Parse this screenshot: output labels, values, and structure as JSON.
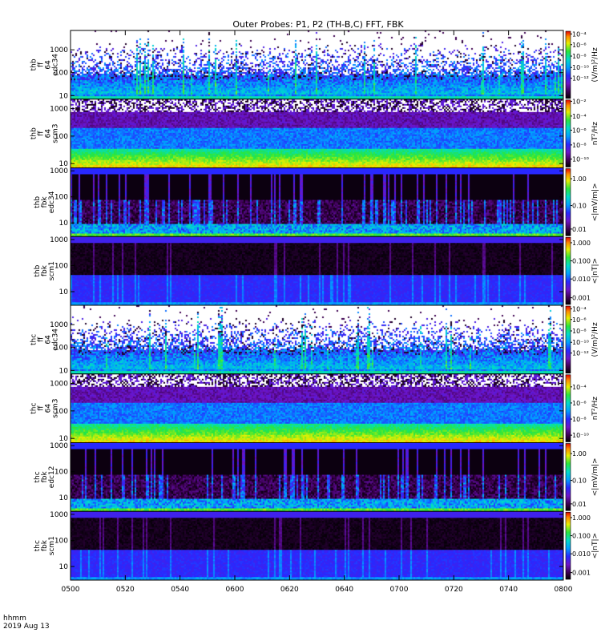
{
  "chart_data": {
    "type": "heatmap",
    "title": "Outer Probes: P1, P2 (TH-B,C) FFT, FBK",
    "x": {
      "ticks": [
        "0500",
        "0520",
        "0540",
        "0600",
        "0620",
        "0640",
        "0700",
        "0720",
        "0740",
        "0800"
      ],
      "label_line1": "hhmm",
      "label_line2": "2019 Aug 13"
    },
    "panels": [
      {
        "ylabel": [
          "thb",
          "ff",
          "64",
          "edc34"
        ],
        "yticks": [
          "1000",
          "100",
          "10"
        ],
        "ytick_values": [
          1000,
          100,
          10
        ],
        "ylim": [
          7,
          7000
        ],
        "style": "efft",
        "colorbar": {
          "title": "(V/m)²/Hz",
          "ticks": [
            "10⁻⁴",
            "10⁻⁶",
            "10⁻⁸",
            "10⁻¹⁰",
            "10⁻¹²"
          ],
          "tick_fracs": [
            0.96,
            0.8,
            0.63,
            0.46,
            0.3
          ]
        }
      },
      {
        "ylabel": [
          "thb",
          "ff",
          "64",
          "scm3"
        ],
        "yticks": [
          "1000",
          "100",
          "10"
        ],
        "ytick_values": [
          1000,
          100,
          10
        ],
        "ylim": [
          7,
          2200
        ],
        "style": "bfft",
        "colorbar": {
          "title": "nT²/Hz",
          "ticks": [
            "10⁻²",
            "10⁻⁴",
            "10⁻⁶",
            "10⁻⁸",
            "10⁻¹⁰"
          ],
          "tick_fracs": [
            0.98,
            0.76,
            0.55,
            0.33,
            0.12
          ]
        }
      },
      {
        "ylabel": [
          "thb",
          "fbk",
          "edc34"
        ],
        "yticks": [
          "1000",
          "100",
          "10"
        ],
        "ytick_values": [
          1000,
          100,
          10
        ],
        "ylim": [
          3,
          1300
        ],
        "style": "efbk",
        "colorbar": {
          "title": "<|mV/m|>",
          "ticks": [
            "1.00",
            "0.10",
            "0.01"
          ],
          "tick_fracs": [
            0.85,
            0.45,
            0.1
          ]
        }
      },
      {
        "ylabel": [
          "thb",
          "fbk",
          "scm1"
        ],
        "yticks": [
          "1000",
          "100",
          "10"
        ],
        "ytick_values": [
          1000,
          100,
          10
        ],
        "ylim": [
          3,
          1300
        ],
        "style": "bfbk",
        "colorbar": {
          "title": "<|nT|>",
          "ticks": [
            "1.000",
            "0.100",
            "0.010",
            "0.001"
          ],
          "tick_fracs": [
            0.92,
            0.65,
            0.38,
            0.1
          ]
        }
      },
      {
        "ylabel": [
          "thc",
          "ff",
          "64",
          "edc34"
        ],
        "yticks": [
          "1000",
          "100",
          "10"
        ],
        "ytick_values": [
          1000,
          100,
          10
        ],
        "ylim": [
          7,
          7000
        ],
        "style": "efft",
        "colorbar": {
          "title": "(V/m)²/Hz",
          "ticks": [
            "10⁻⁴",
            "10⁻⁶",
            "10⁻⁸",
            "10⁻¹⁰",
            "10⁻¹²"
          ],
          "tick_fracs": [
            0.96,
            0.8,
            0.63,
            0.46,
            0.3
          ]
        }
      },
      {
        "ylabel": [
          "thc",
          "ff",
          "64",
          "scm3"
        ],
        "yticks": [
          "1000",
          "100",
          "10"
        ],
        "ytick_values": [
          1000,
          100,
          10
        ],
        "ylim": [
          7,
          2200
        ],
        "style": "bfft",
        "colorbar": {
          "title": "nT²/Hz",
          "ticks": [
            "10⁻⁴",
            "10⁻⁶",
            "10⁻⁸",
            "10⁻¹⁰"
          ],
          "tick_fracs": [
            0.82,
            0.58,
            0.34,
            0.1
          ]
        }
      },
      {
        "ylabel": [
          "thc",
          "fbk",
          "edc12"
        ],
        "yticks": [
          "1000",
          "100",
          "10"
        ],
        "ytick_values": [
          1000,
          100,
          10
        ],
        "ylim": [
          3,
          1300
        ],
        "style": "efbk",
        "colorbar": {
          "title": "<|mV/m|>",
          "ticks": [
            "1.00",
            "0.10",
            "0.01"
          ],
          "tick_fracs": [
            0.85,
            0.45,
            0.1
          ]
        }
      },
      {
        "ylabel": [
          "thc",
          "fbk",
          "scm1"
        ],
        "yticks": [
          "1000",
          "100",
          "10"
        ],
        "ytick_values": [
          1000,
          100,
          10
        ],
        "ylim": [
          3,
          1300
        ],
        "style": "bfbk",
        "colorbar": {
          "title": "<|nT|>",
          "ticks": [
            "1.000",
            "0.100",
            "0.010",
            "0.001"
          ],
          "tick_fracs": [
            0.92,
            0.65,
            0.38,
            0.1
          ]
        }
      }
    ],
    "grid": false
  }
}
